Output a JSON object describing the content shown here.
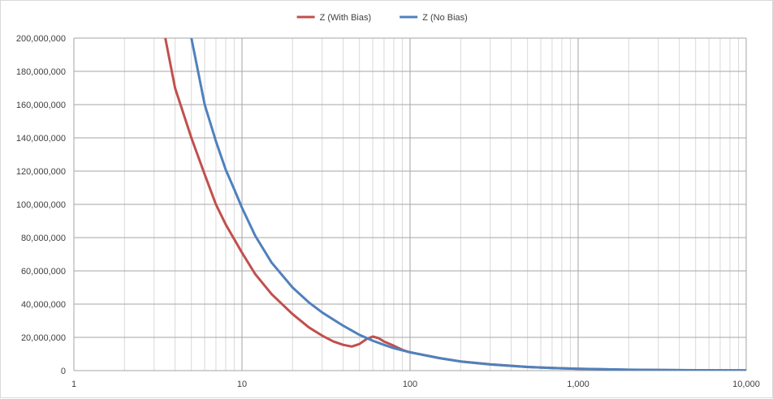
{
  "chart_data": {
    "type": "line",
    "title": "",
    "xlabel": "",
    "ylabel": "",
    "x_scale": "log",
    "xlim": [
      1,
      10000
    ],
    "ylim": [
      0,
      200000000
    ],
    "grid": true,
    "legend_position": "top",
    "x_ticks": [
      1,
      10,
      100,
      1000,
      10000
    ],
    "x_tick_labels": [
      "1",
      "10",
      "100",
      "1,000",
      "10,000"
    ],
    "y_ticks": [
      0,
      20000000,
      40000000,
      60000000,
      80000000,
      100000000,
      120000000,
      140000000,
      160000000,
      180000000,
      200000000
    ],
    "y_tick_labels": [
      "0",
      "20,000,000",
      "40,000,000",
      "60,000,000",
      "80,000,000",
      "100,000,000",
      "120,000,000",
      "140,000,000",
      "160,000,000",
      "180,000,000",
      "200,000,000"
    ],
    "series": [
      {
        "name": "Z (With Bias)",
        "color": "#c0504d",
        "x": [
          3.5,
          4,
          5,
          6,
          7,
          8,
          10,
          12,
          15,
          20,
          25,
          30,
          35,
          40,
          45,
          50,
          55,
          60,
          65,
          70,
          80,
          90,
          100,
          150,
          200,
          300,
          500,
          700,
          1000,
          2000,
          5000,
          10000
        ],
        "y": [
          200000000,
          170000000,
          140000000,
          118000000,
          100000000,
          88000000,
          71000000,
          58000000,
          46000000,
          34000000,
          26000000,
          21000000,
          17500000,
          15500000,
          14500000,
          16000000,
          19000000,
          20500000,
          19500000,
          17500000,
          15000000,
          12500000,
          11000000,
          7500000,
          5500000,
          3800000,
          2200000,
          1600000,
          1100000,
          500000,
          200000,
          100000
        ]
      },
      {
        "name": "Z (No Bias)",
        "color": "#4f81bd",
        "x": [
          5,
          6,
          7,
          8,
          9,
          10,
          12,
          15,
          20,
          25,
          30,
          40,
          50,
          60,
          70,
          80,
          100,
          150,
          200,
          300,
          500,
          700,
          1000,
          2000,
          5000,
          10000
        ],
        "y": [
          200000000,
          160000000,
          138000000,
          121000000,
          109000000,
          98000000,
          81000000,
          65000000,
          50000000,
          41000000,
          35000000,
          27000000,
          21500000,
          18000000,
          15500000,
          13500000,
          11000000,
          7500000,
          5500000,
          3700000,
          2200000,
          1600000,
          1100000,
          550000,
          220000,
          110000
        ]
      }
    ]
  }
}
